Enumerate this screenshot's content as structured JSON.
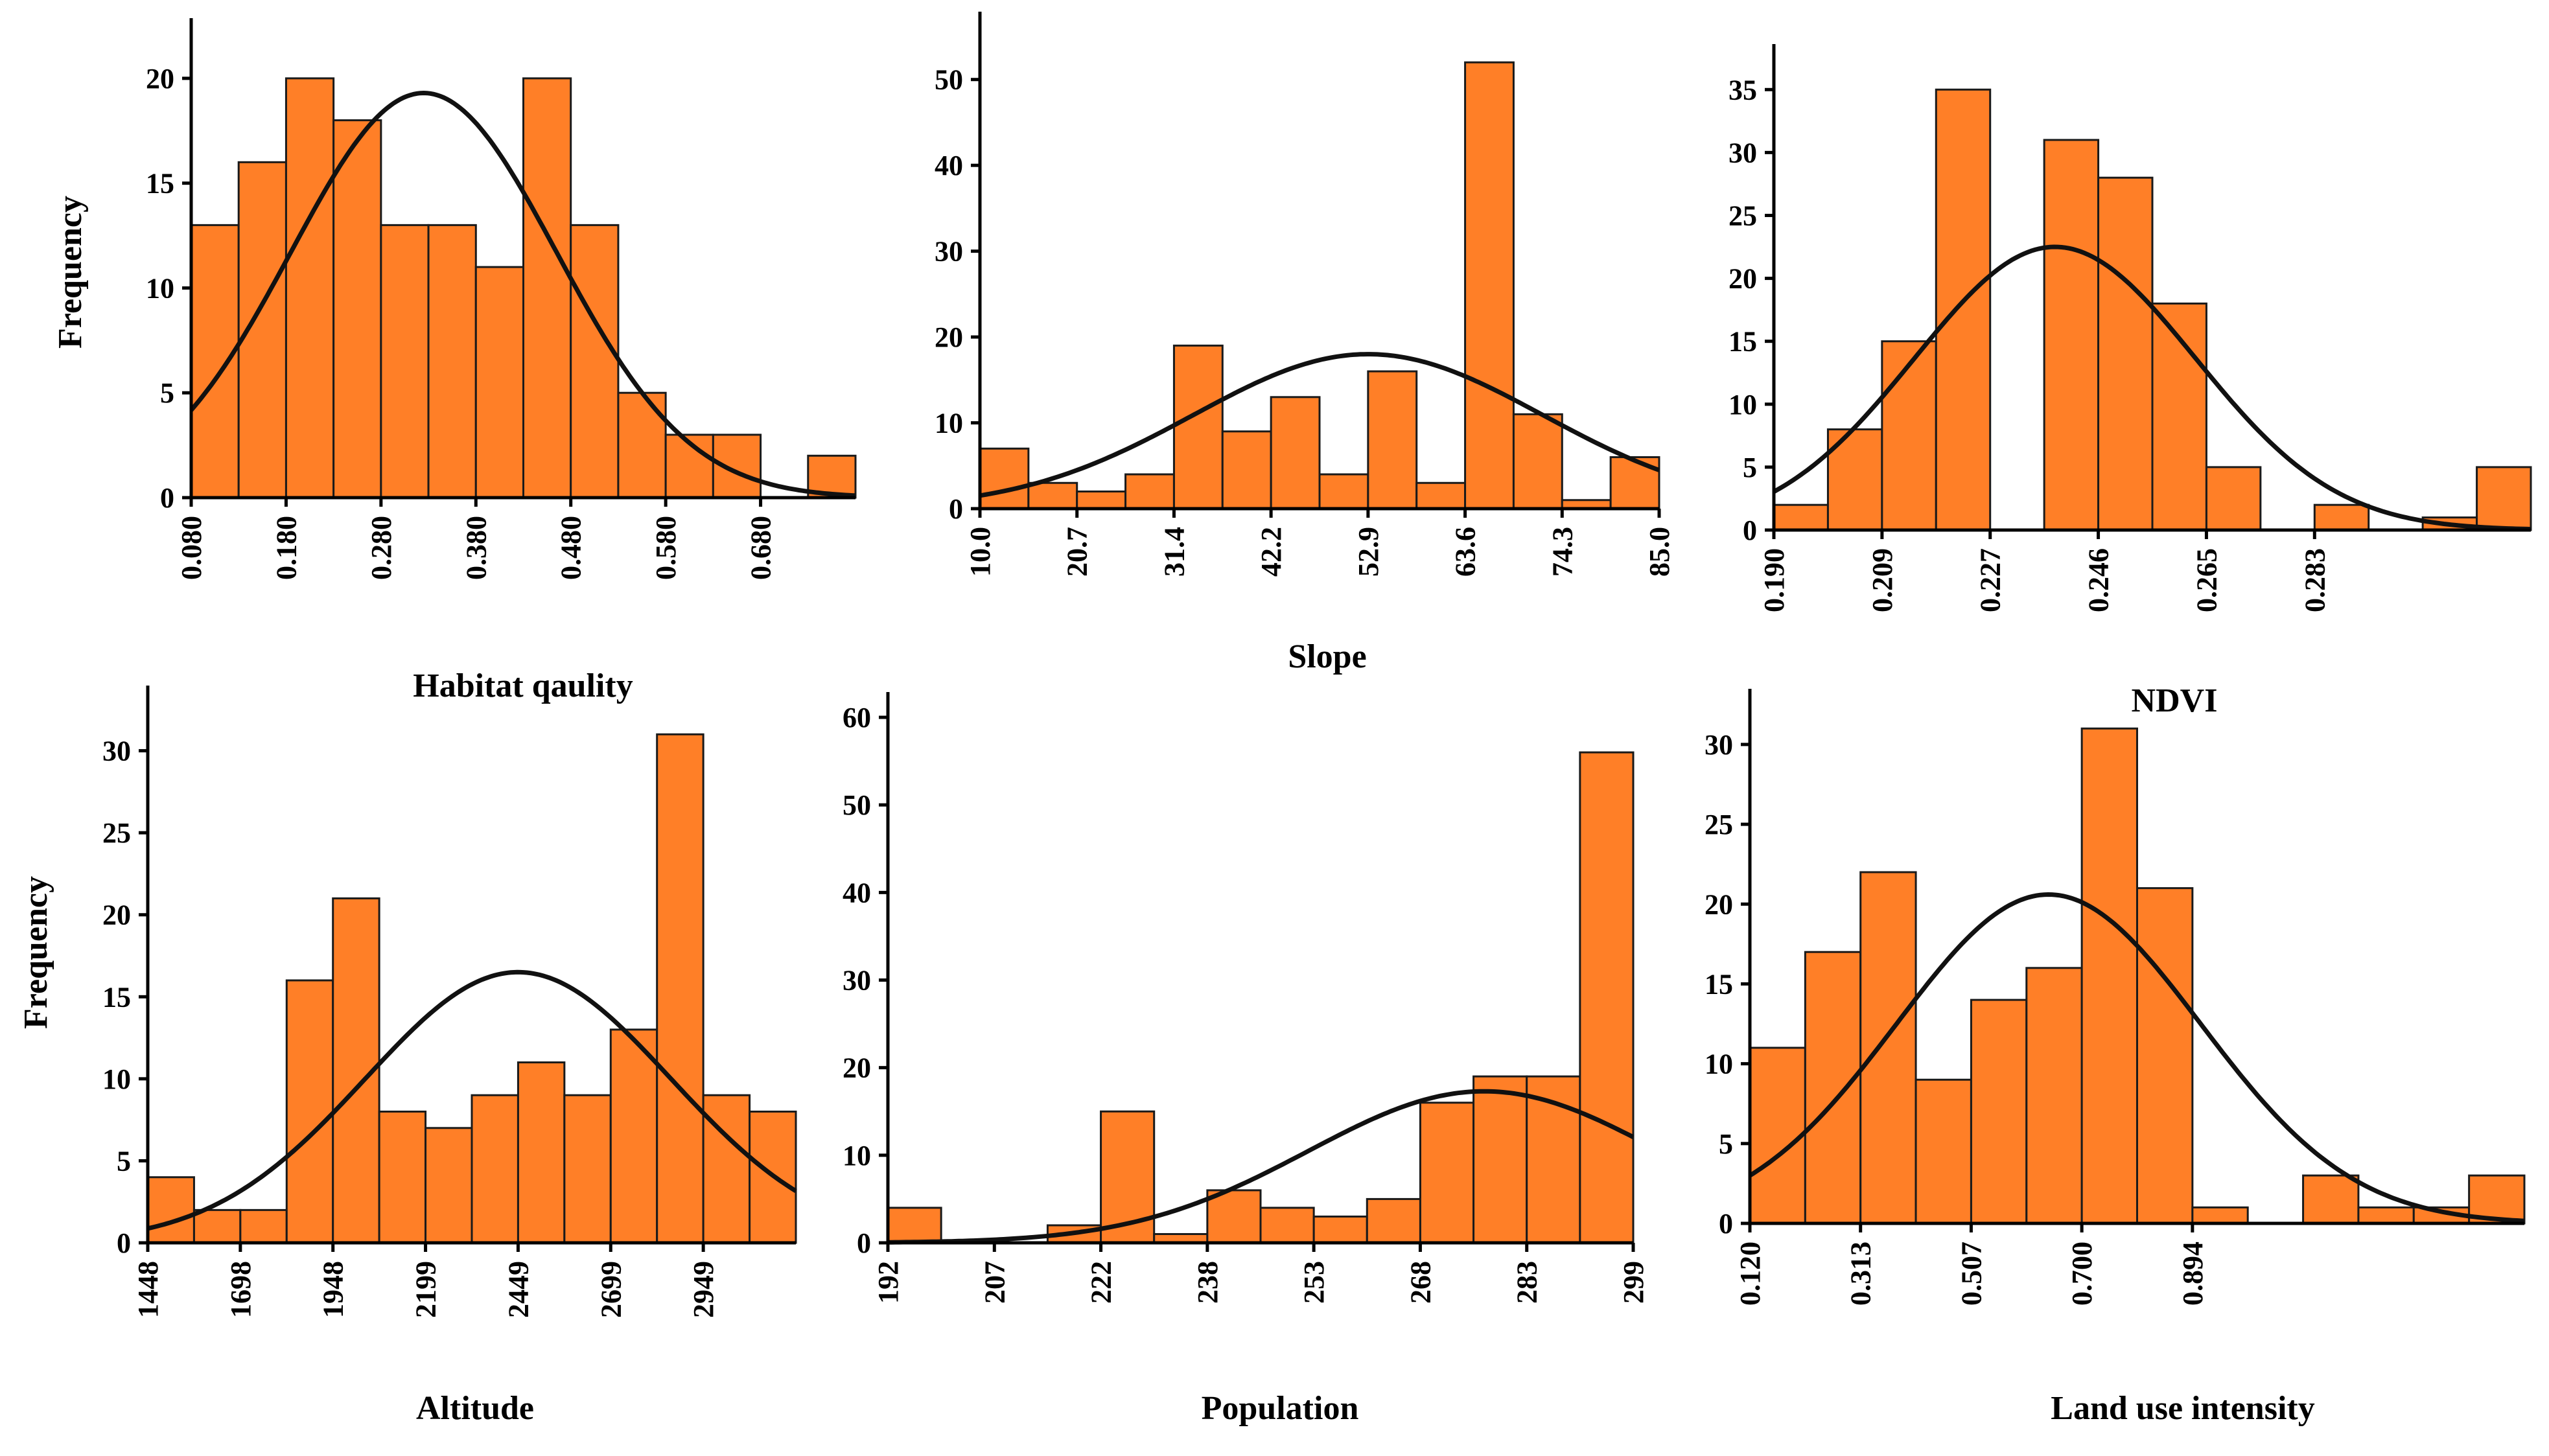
{
  "colors": {
    "bar": "#FF7F27",
    "curve": "#111111",
    "axis": "#000000"
  },
  "chart_data": [
    {
      "type": "bar",
      "title": "",
      "xlabel": "Habitat qaulity",
      "ylabel": "Frequency",
      "x_ticks": [
        "0.080",
        "0.180",
        "0.280",
        "0.380",
        "0.480",
        "0.580",
        "0.680"
      ],
      "y_ticks": [
        "0",
        "5",
        "10",
        "15",
        "20"
      ],
      "values": [
        13,
        16,
        20,
        18,
        13,
        13,
        11,
        20,
        13,
        5,
        3,
        3,
        0,
        2
      ],
      "ylim": [
        0,
        22.5
      ],
      "normal_curve_peak": 19.3,
      "normal_curve_mean_bin": 4.9,
      "normal_curve_sd_bins": 2.8
    },
    {
      "type": "bar",
      "title": "",
      "xlabel": "Slope",
      "ylabel": "",
      "x_ticks": [
        "10.0",
        "20.7",
        "31.4",
        "42.2",
        "52.9",
        "63.6",
        "74.3",
        "85.0"
      ],
      "y_ticks": [
        "0",
        "10",
        "20",
        "30",
        "40",
        "50"
      ],
      "values": [
        7,
        3,
        2,
        4,
        19,
        9,
        13,
        4,
        16,
        3,
        52,
        11,
        1,
        6
      ],
      "ylim": [
        0,
        57
      ],
      "normal_curve_peak": 18,
      "normal_curve_mean_bin": 8.0,
      "normal_curve_sd_bins": 3.6
    },
    {
      "type": "bar",
      "title": "",
      "xlabel": "NDVI",
      "ylabel": "",
      "x_ticks": [
        "0.190",
        "0.209",
        "0.227",
        "0.246",
        "0.265",
        "0.283"
      ],
      "y_ticks": [
        "0",
        "5",
        "10",
        "15",
        "20",
        "25",
        "30",
        "35"
      ],
      "values": [
        2,
        8,
        15,
        35,
        0,
        31,
        28,
        18,
        5,
        0,
        2,
        0,
        1,
        5
      ],
      "ylim": [
        0,
        38
      ],
      "normal_curve_peak": 22.5,
      "normal_curve_mean_bin": 5.2,
      "normal_curve_sd_bins": 2.6
    },
    {
      "type": "bar",
      "title": "",
      "xlabel": "Altitude",
      "ylabel": "Frequency",
      "x_ticks": [
        "1448",
        "1698",
        "1948",
        "2199",
        "2449",
        "2699",
        "2949"
      ],
      "y_ticks": [
        "0",
        "5",
        "10",
        "15",
        "20",
        "25",
        "30"
      ],
      "values": [
        4,
        2,
        2,
        16,
        21,
        8,
        7,
        9,
        11,
        9,
        13,
        31,
        9,
        8
      ],
      "ylim": [
        0,
        33.5
      ],
      "normal_curve_peak": 16.5,
      "normal_curve_mean_bin": 8.0,
      "normal_curve_sd_bins": 3.3
    },
    {
      "type": "bar",
      "title": "",
      "xlabel": "Population",
      "ylabel": "",
      "x_ticks": [
        "192",
        "207",
        "222",
        "238",
        "253",
        "268",
        "283",
        "299"
      ],
      "y_ticks": [
        "0",
        "10",
        "20",
        "30",
        "40",
        "50",
        "60"
      ],
      "values": [
        4,
        0,
        0,
        2,
        15,
        1,
        6,
        4,
        3,
        5,
        16,
        19,
        19,
        56
      ],
      "ylim": [
        0,
        62
      ],
      "normal_curve_peak": 17.3,
      "normal_curve_mean_bin": 11.2,
      "normal_curve_sd_bins": 3.3
    },
    {
      "type": "bar",
      "title": "",
      "xlabel": "Land use intensity",
      "ylabel": "",
      "x_ticks": [
        "0.120",
        "0.313",
        "0.507",
        "0.700",
        "0.894"
      ],
      "y_ticks": [
        "0",
        "5",
        "10",
        "15",
        "20",
        "25",
        "30"
      ],
      "values": [
        11,
        17,
        22,
        9,
        14,
        16,
        31,
        21,
        1,
        0,
        3,
        1,
        1,
        3
      ],
      "ylim": [
        0,
        33
      ],
      "normal_curve_peak": 20.6,
      "normal_curve_mean_bin": 5.4,
      "normal_curve_sd_bins": 2.75
    }
  ]
}
